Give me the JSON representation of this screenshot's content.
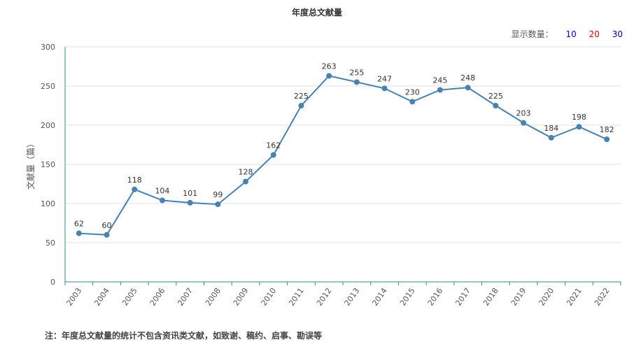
{
  "title": "年度总文献量",
  "display_count": {
    "label": "显示数量：",
    "options": [
      {
        "text": "10",
        "color": "#0000ff"
      },
      {
        "text": "20",
        "color": "#e00000"
      },
      {
        "text": "30",
        "color": "#0000aa"
      }
    ]
  },
  "note": "注：年度总文献量的统计不包含资讯类文献，如致谢、稿约、启事、勘误等",
  "chart_data": {
    "type": "line",
    "title": "年度总文献量",
    "xlabel": "",
    "ylabel": "文献量（篇）",
    "ylim": [
      0,
      300
    ],
    "yticks": [
      0,
      50,
      100,
      150,
      200,
      250,
      300
    ],
    "grid": true,
    "categories": [
      "2003",
      "2004",
      "2005",
      "2006",
      "2007",
      "2008",
      "2009",
      "2010",
      "2011",
      "2012",
      "2013",
      "2014",
      "2015",
      "2016",
      "2017",
      "2018",
      "2019",
      "2020",
      "2021",
      "2022"
    ],
    "values": [
      62,
      60,
      118,
      104,
      101,
      99,
      128,
      162,
      225,
      263,
      255,
      247,
      230,
      245,
      248,
      225,
      203,
      184,
      198,
      182
    ],
    "line_color": "#4682b4",
    "grid_color": "#e0e0e0",
    "axis_color": "#2e8b8b"
  }
}
